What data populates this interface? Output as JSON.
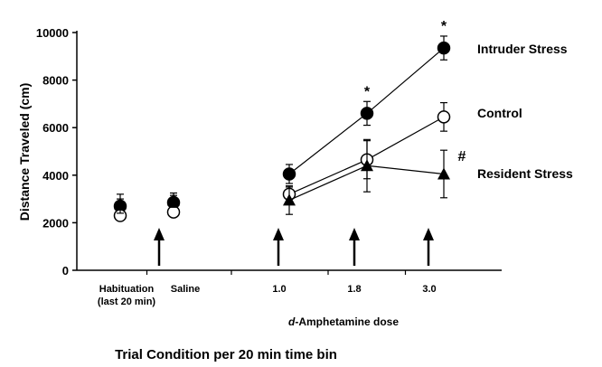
{
  "chart_data": {
    "type": "line",
    "title": "Trial Condition per 20 min time bin",
    "y_label": "Distance Traveled (cm)",
    "dose_label": {
      "italic": "d",
      "rest": "-Amphetamine dose"
    },
    "categories": [
      [
        "Habituation",
        "(last 20 min)"
      ],
      [
        "Saline"
      ],
      [
        "1.0"
      ],
      [
        "1.8"
      ],
      [
        "3.0"
      ]
    ],
    "connected": [
      false,
      false,
      true,
      true,
      true
    ],
    "arrows": [
      false,
      true,
      true,
      true,
      true
    ],
    "ylim": [
      0,
      10000
    ],
    "yticks": [
      0,
      2000,
      4000,
      6000,
      8000,
      10000
    ],
    "series": [
      {
        "name": "Intruder Stress",
        "marker": "filled-circle",
        "color": "#000000",
        "values": [
          2700,
          2850,
          4050,
          6600,
          9350
        ],
        "errors": [
          300,
          300,
          400,
          500,
          500
        ]
      },
      {
        "name": "Control",
        "marker": "open-circle",
        "color": "#000000",
        "values": [
          2300,
          2450,
          3200,
          4650,
          6450
        ],
        "errors": [
          200,
          200,
          300,
          800,
          600
        ]
      },
      {
        "name": "Resident Stress",
        "marker": "triangle",
        "color": "#000000",
        "values": [
          2800,
          2950,
          2950,
          4400,
          4050
        ],
        "errors": [
          400,
          300,
          600,
          1100,
          1000
        ]
      }
    ],
    "annotations": [
      {
        "text": "*",
        "series": 0,
        "index": 3
      },
      {
        "text": "*",
        "series": 0,
        "index": 4
      },
      {
        "text": "#",
        "series": 2,
        "index": 4
      }
    ]
  }
}
